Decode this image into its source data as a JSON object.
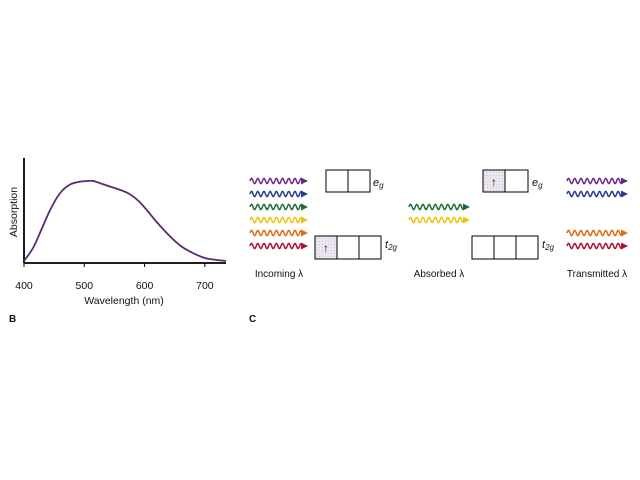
{
  "chart_data": {
    "type": "line",
    "title": "",
    "xlabel": "Wavelength (nm)",
    "ylabel": "Absorption",
    "xlim": [
      400,
      735
    ],
    "ylim": [
      0,
      1.0
    ],
    "x_ticks": [
      "400",
      "500",
      "600",
      "700"
    ],
    "grid": false,
    "series": [
      {
        "color": "#5a2a6e",
        "x": [
          400,
          415,
          430,
          445,
          460,
          475,
          490,
          505,
          515,
          530,
          545,
          560,
          575,
          590,
          605,
          620,
          640,
          660,
          680,
          700,
          720,
          735
        ],
        "y": [
          0.02,
          0.15,
          0.35,
          0.55,
          0.7,
          0.78,
          0.81,
          0.82,
          0.82,
          0.79,
          0.76,
          0.73,
          0.69,
          0.62,
          0.52,
          0.41,
          0.28,
          0.17,
          0.1,
          0.05,
          0.03,
          0.02
        ]
      }
    ]
  },
  "panels": {
    "b": "B",
    "c": "C"
  },
  "labels": {
    "incoming": "Incoming λ",
    "absorbed": "Absorbed λ",
    "transmitted": "Transmitted λ",
    "eg_main": "e",
    "eg_sub": "g",
    "t2g_main": "t",
    "t2g_sub": "2g",
    "electron": "↑"
  },
  "colors": {
    "violet": "#6b2a8a",
    "blue": "#2a3c8f",
    "green": "#1f6b35",
    "yellow": "#f2c10f",
    "orange": "#e06a14",
    "red": "#b01233",
    "curve": "#5a2a6e",
    "shade": "#ece6f0"
  },
  "waves": {
    "incoming": [
      "violet",
      "blue",
      "green",
      "yellow",
      "orange",
      "red"
    ],
    "absorbed": [
      "green",
      "yellow"
    ],
    "transmitted": [
      "violet",
      "blue",
      "orange",
      "red"
    ]
  }
}
